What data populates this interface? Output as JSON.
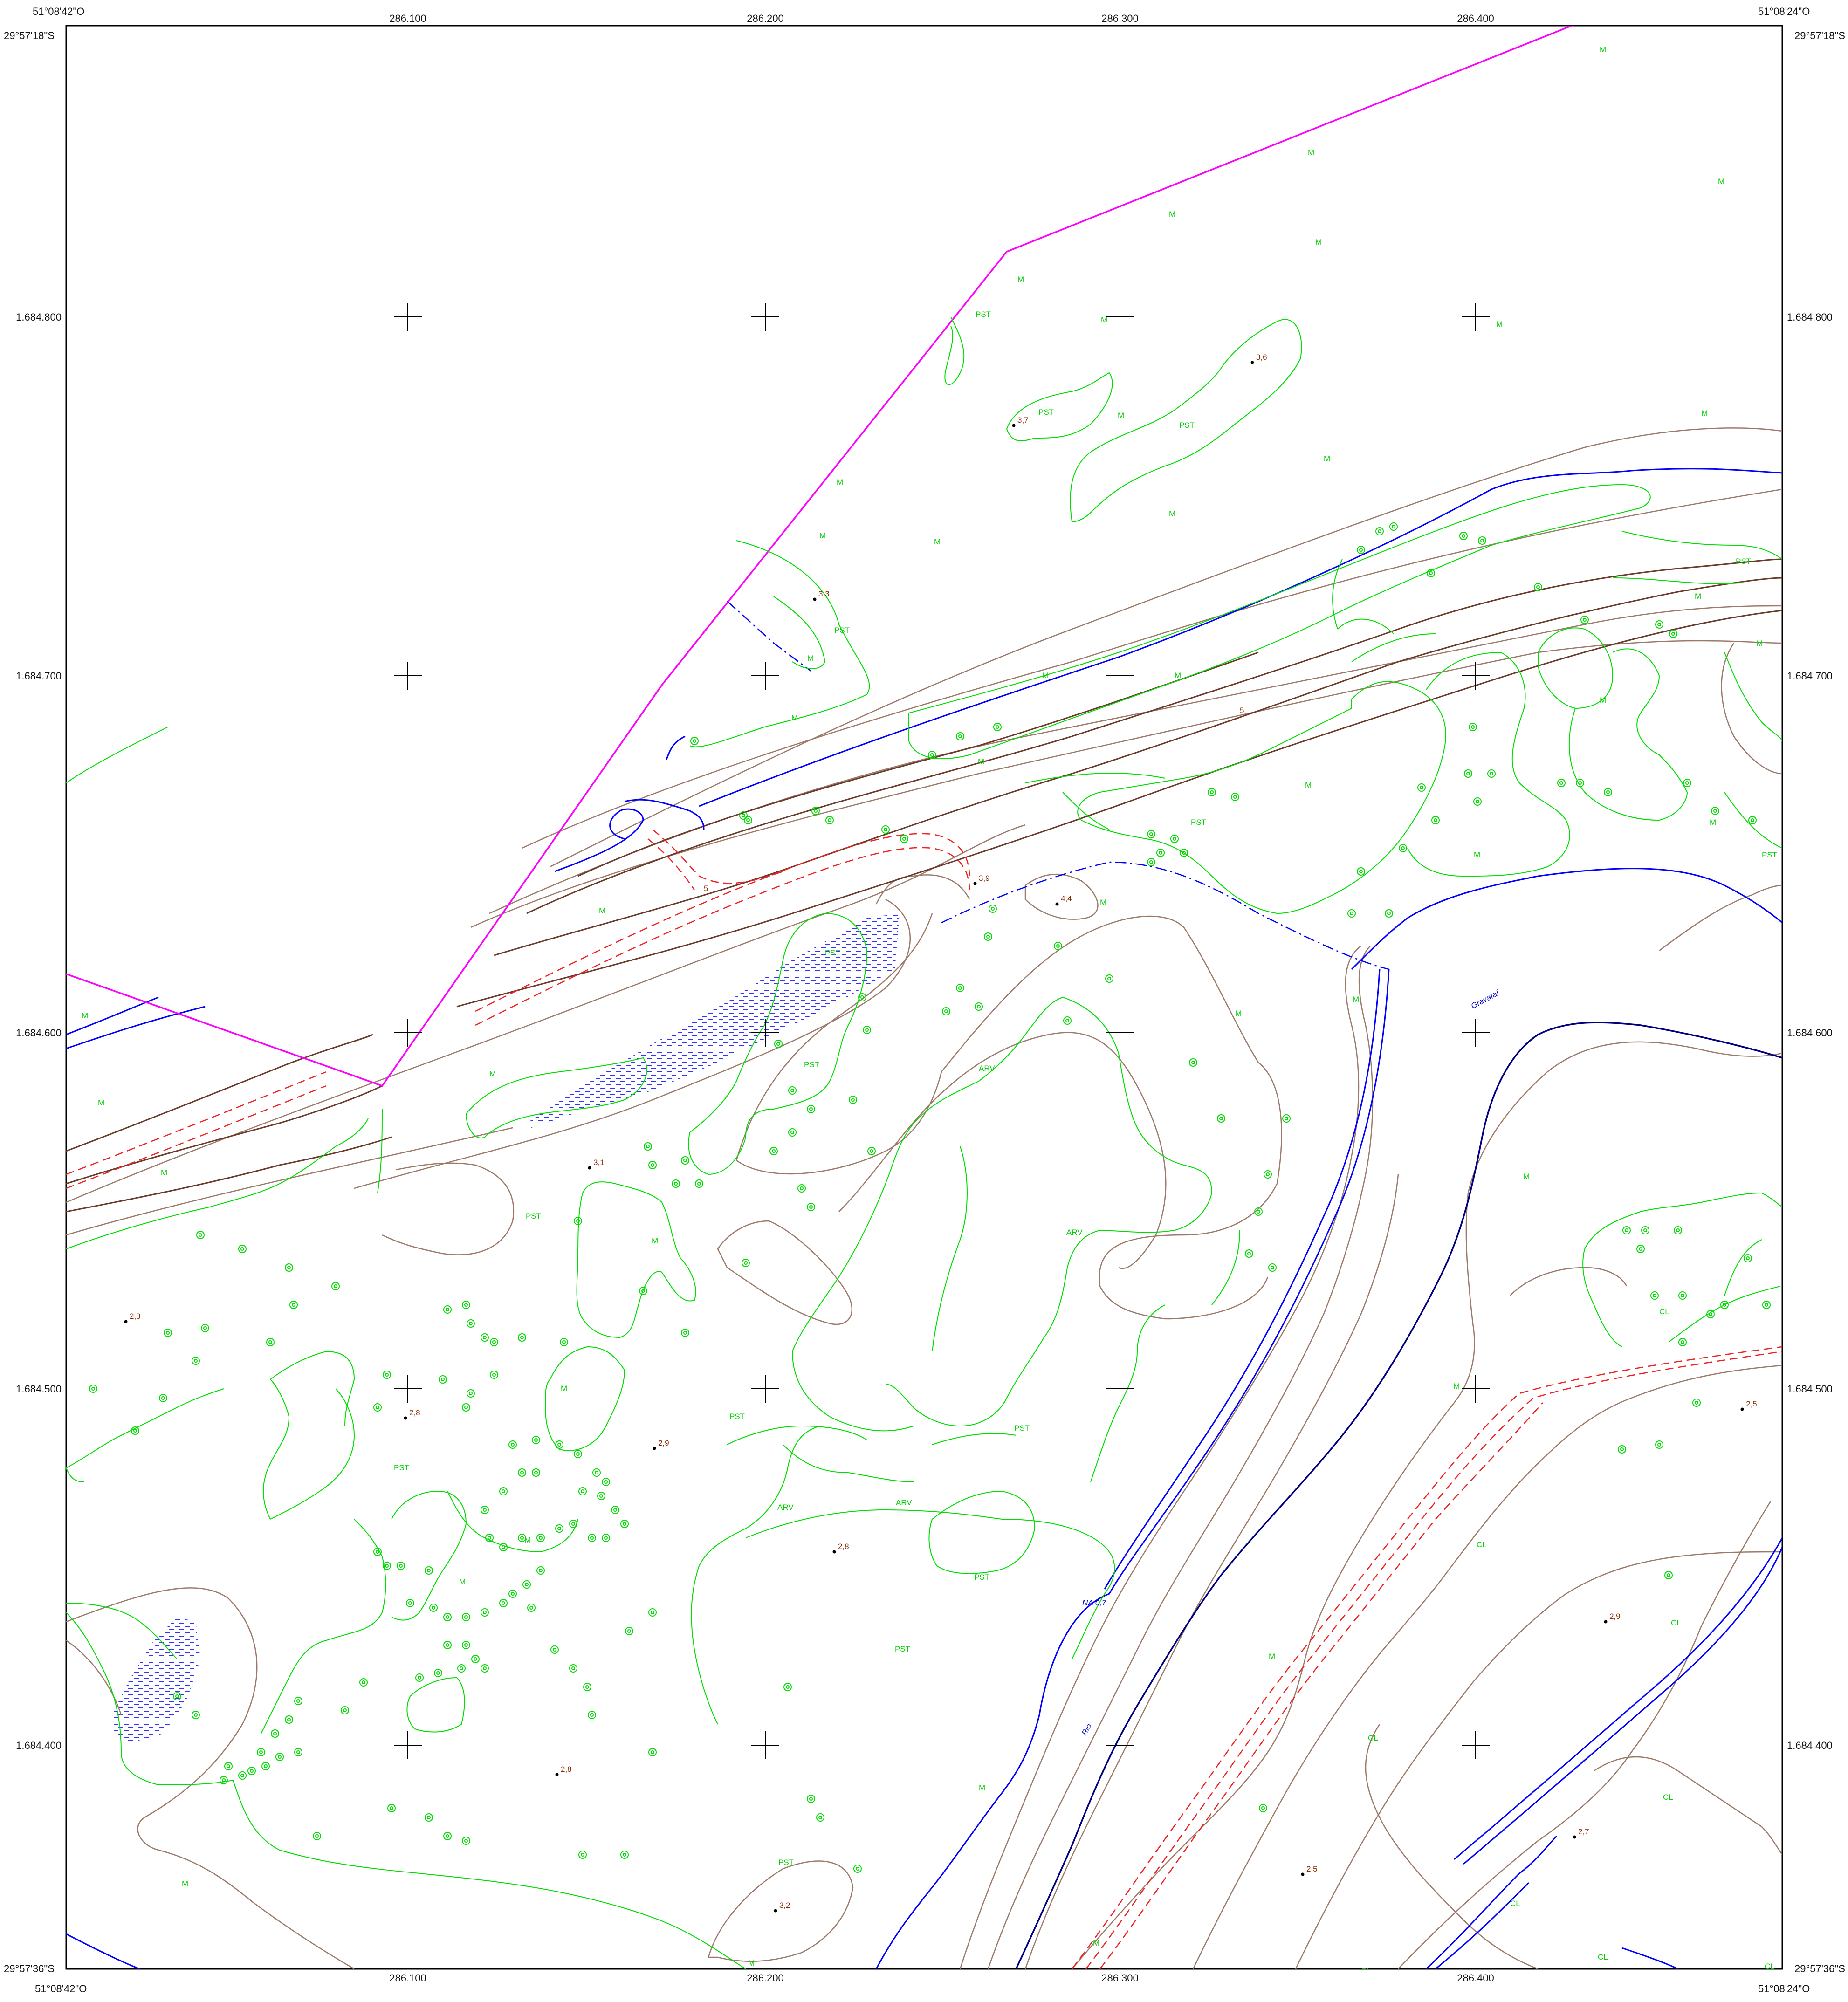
{
  "corners": {
    "top_left_lon": "51°08'42\"O",
    "top_left_lat": "29°57'18\"S",
    "top_right_lon": "51°08'24\"O",
    "top_right_lat": "29°57'18\"S",
    "bottom_left_lon": "51°08'42\"O",
    "bottom_left_lat": "29°57'36\"S",
    "bottom_right_lon": "51°08'24\"O",
    "bottom_right_lat": "29°57'36\"S"
  },
  "grid": {
    "easting_labels": [
      "286.100",
      "286.200",
      "286.300",
      "286.400"
    ],
    "northing_labels": [
      "1.684.800",
      "1.684.700",
      "1.684.600",
      "1.684.500",
      "1.684.400"
    ]
  },
  "spot_heights": [
    "3,6",
    "3,7",
    "3,3",
    "3,9",
    "4,4",
    "3,1",
    "2,8",
    "2,8",
    "2,9",
    "2,8",
    "2,5",
    "2,9",
    "2,8",
    "2,7",
    "2,5",
    "3,2"
  ],
  "contour_labels": [
    "5",
    "5"
  ],
  "water_labels": [
    "Gravataí",
    "Rio",
    "NA 0,7"
  ],
  "land_cover_labels": [
    "M",
    "M",
    "M",
    "M",
    "M",
    "M",
    "PST",
    "M",
    "M",
    "PST",
    "M",
    "M",
    "M",
    "M",
    "PST",
    "M",
    "M",
    "M",
    "PST",
    "PST",
    "M",
    "M",
    "M",
    "M",
    "M",
    "M",
    "M",
    "PST",
    "M",
    "M",
    "PST",
    "M",
    "M",
    "PST",
    "M",
    "ARV",
    "M",
    "M",
    "M",
    "PST",
    "M",
    "PST",
    "ARV",
    "ARV",
    "PST",
    "M",
    "ARV",
    "M",
    "PST",
    "PST",
    "M",
    "PST",
    "PST",
    "M",
    "M",
    "CL",
    "M",
    "CL",
    "CL",
    "CL",
    "M",
    "CL",
    "CL",
    "CL",
    "CL",
    "M",
    "M",
    "PST",
    "M",
    "M",
    "CL",
    "M",
    "M",
    "M"
  ],
  "colors": {
    "boundary": "#ff00ff",
    "water": "#0000ff",
    "vegetation": "#00dd00",
    "contour": "#9c7a6a",
    "contour_index": "#6b3a2a",
    "road": "#ff0000",
    "riverbank": "#000080",
    "grid": "#000000"
  }
}
